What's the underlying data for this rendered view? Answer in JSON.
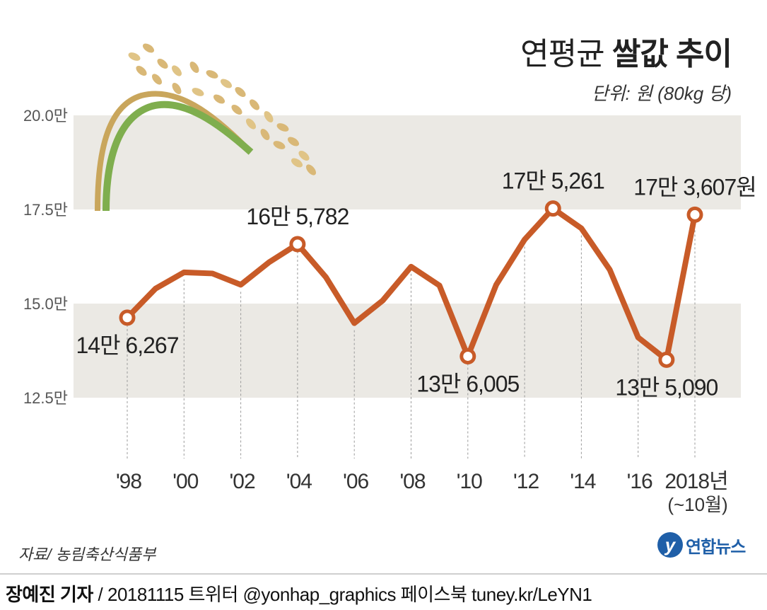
{
  "header": {
    "title_normal": "연평균",
    "title_bold": "쌀값 추이",
    "unit": "단위: 원 (80kg 당)"
  },
  "source": "자료/ 농림축산식품부",
  "logo": {
    "mark": "y",
    "text": "연합뉴스"
  },
  "footer": {
    "author": "장예진 기자",
    "rest": " / 20181115 트위터 @yonhap_graphics  페이스북 tuney.kr/LeYN1"
  },
  "colors": {
    "line": "#c85b28",
    "band": "#ebe9e4",
    "background": "#ffffff",
    "brand": "#1f5fa8"
  },
  "chart_data": {
    "type": "line",
    "x": [
      1998,
      1999,
      2000,
      2001,
      2002,
      2003,
      2004,
      2005,
      2006,
      2007,
      2008,
      2009,
      2010,
      2011,
      2012,
      2013,
      2014,
      2015,
      2016,
      2017,
      2018
    ],
    "series": [
      {
        "values": [
          146267,
          154000,
          158300,
          158000,
          155000,
          161000,
          165782,
          157000,
          144800,
          150800,
          159800,
          154800,
          136005,
          155000,
          167000,
          175261,
          170000,
          159000,
          141000,
          135090,
          173607
        ]
      }
    ],
    "ylim": [
      125000,
      200000
    ],
    "yticks": [
      {
        "value": 125000,
        "label": "12.5만"
      },
      {
        "value": 150000,
        "label": "15.0만"
      },
      {
        "value": 175000,
        "label": "17.5만"
      },
      {
        "value": 200000,
        "label": "20.0만"
      }
    ],
    "xticks": [
      {
        "value": 1998,
        "label": "'98"
      },
      {
        "value": 2000,
        "label": "'00"
      },
      {
        "value": 2002,
        "label": "'02"
      },
      {
        "value": 2004,
        "label": "'04"
      },
      {
        "value": 2006,
        "label": "'06"
      },
      {
        "value": 2008,
        "label": "'08"
      },
      {
        "value": 2010,
        "label": "'10"
      },
      {
        "value": 2012,
        "label": "'12"
      },
      {
        "value": 2014,
        "label": "'14"
      },
      {
        "value": 2016,
        "label": "'16"
      },
      {
        "value": 2018,
        "label": "2018년",
        "sublabel": "(~10월)"
      }
    ],
    "annotations": [
      {
        "x": 1998,
        "label": "14만 6,267",
        "pos": "below"
      },
      {
        "x": 2004,
        "label": "16만 5,782",
        "pos": "above"
      },
      {
        "x": 2010,
        "label": "13만 6,005",
        "pos": "below"
      },
      {
        "x": 2013,
        "label": "17만 5,261",
        "pos": "above"
      },
      {
        "x": 2017,
        "label": "13만 5,090",
        "pos": "below"
      },
      {
        "x": 2018,
        "label": "17만 3,607원",
        "pos": "above"
      }
    ],
    "grid": false,
    "legend": "none"
  }
}
